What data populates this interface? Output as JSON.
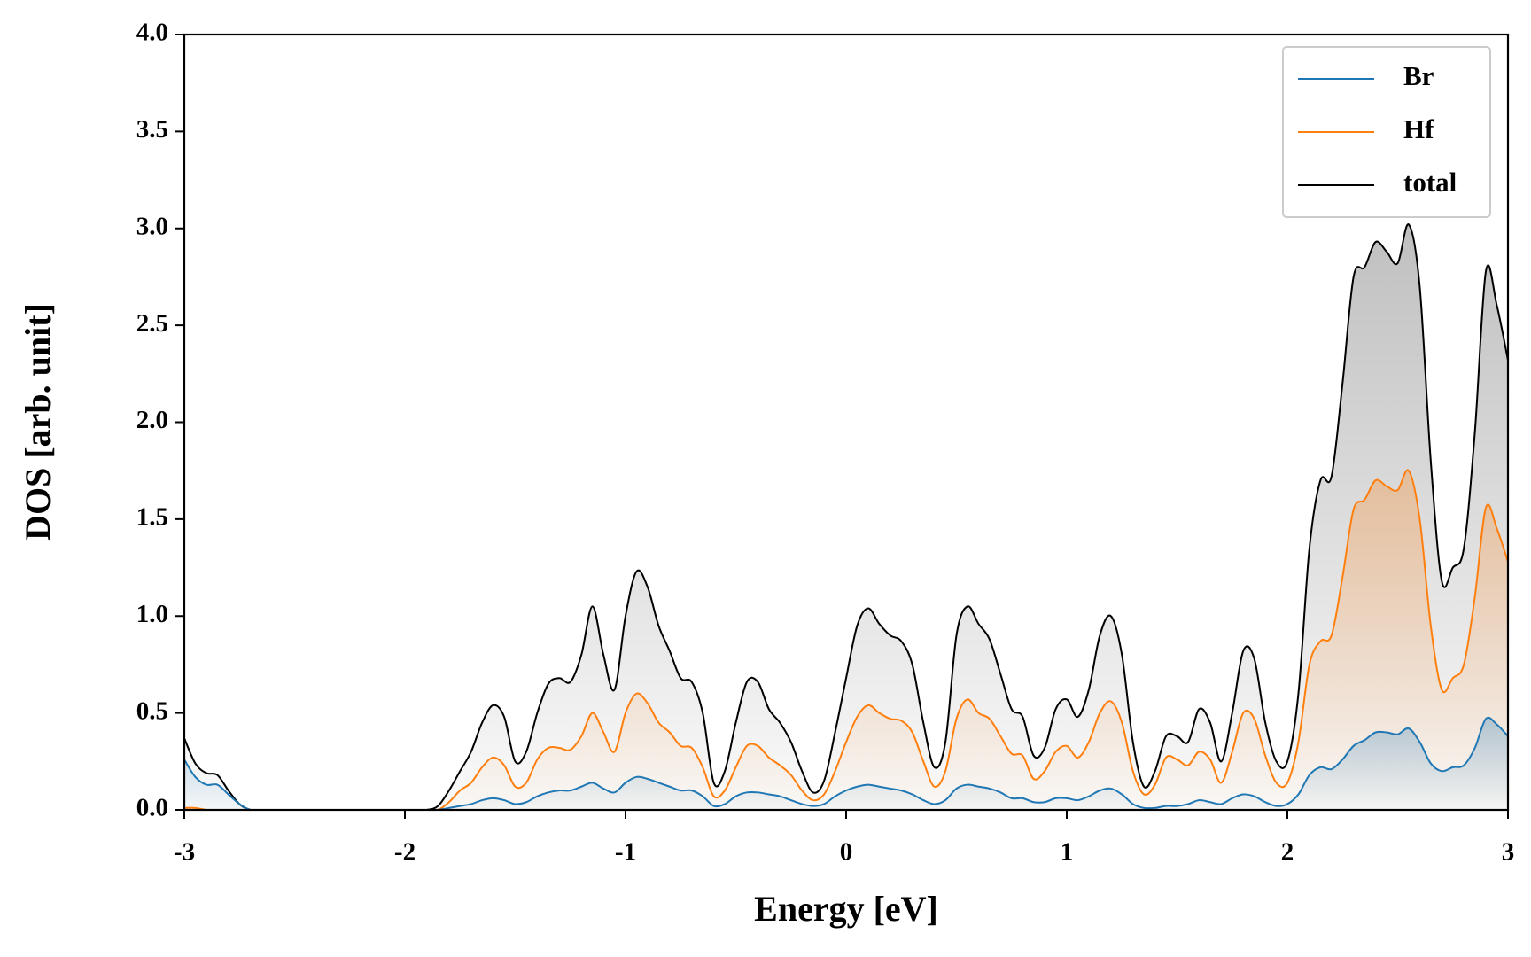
{
  "chart_data": {
    "type": "line",
    "xlabel": "Energy [eV]",
    "ylabel": "DOS [arb. unit]",
    "x": [
      -3,
      -2.95,
      -2.9,
      -2.85,
      -2.8,
      -2.75,
      -2.7,
      -2.65,
      -2.6,
      -2.55,
      -2.5,
      -2.45,
      -2.4,
      -2.35,
      -2.3,
      -2.25,
      -2.2,
      -2.15,
      -2.1,
      -2.05,
      -2,
      -1.95,
      -1.9,
      -1.85,
      -1.8,
      -1.75,
      -1.7,
      -1.65,
      -1.6,
      -1.55,
      -1.5,
      -1.45,
      -1.4,
      -1.35,
      -1.3,
      -1.25,
      -1.2,
      -1.15,
      -1.1,
      -1.05,
      -1,
      -0.95,
      -0.9,
      -0.85,
      -0.8,
      -0.75,
      -0.7,
      -0.65,
      -0.6,
      -0.55,
      -0.5,
      -0.45,
      -0.4,
      -0.35,
      -0.3,
      -0.25,
      -0.2,
      -0.15,
      -0.1,
      -0.05,
      0,
      0.05,
      0.1,
      0.15,
      0.2,
      0.25,
      0.3,
      0.35,
      0.4,
      0.45,
      0.5,
      0.55,
      0.6,
      0.65,
      0.7,
      0.75,
      0.8,
      0.85,
      0.9,
      0.95,
      1,
      1.05,
      1.1,
      1.15,
      1.2,
      1.25,
      1.3,
      1.35,
      1.4,
      1.45,
      1.5,
      1.55,
      1.6,
      1.65,
      1.7,
      1.75,
      1.8,
      1.85,
      1.9,
      1.95,
      2,
      2.05,
      2.1,
      2.15,
      2.2,
      2.25,
      2.3,
      2.35,
      2.4,
      2.45,
      2.5,
      2.55,
      2.6,
      2.65,
      2.7,
      2.75,
      2.8,
      2.85,
      2.9,
      2.95,
      3
    ],
    "series": [
      {
        "name": "Br",
        "color": "#1f77b4",
        "values": [
          0.26,
          0.17,
          0.13,
          0.13,
          0.08,
          0.03,
          0,
          0,
          0,
          0,
          0,
          0,
          0,
          0,
          0,
          0,
          0,
          0,
          0,
          0,
          0,
          0,
          0,
          0,
          0.01,
          0.02,
          0.03,
          0.05,
          0.06,
          0.05,
          0.03,
          0.04,
          0.07,
          0.09,
          0.1,
          0.1,
          0.12,
          0.14,
          0.11,
          0.09,
          0.14,
          0.17,
          0.16,
          0.14,
          0.12,
          0.1,
          0.1,
          0.07,
          0.02,
          0.03,
          0.07,
          0.09,
          0.09,
          0.08,
          0.07,
          0.05,
          0.03,
          0.02,
          0.03,
          0.07,
          0.1,
          0.12,
          0.13,
          0.12,
          0.11,
          0.1,
          0.08,
          0.05,
          0.03,
          0.05,
          0.11,
          0.13,
          0.12,
          0.11,
          0.09,
          0.06,
          0.06,
          0.04,
          0.04,
          0.06,
          0.06,
          0.05,
          0.07,
          0.1,
          0.11,
          0.08,
          0.03,
          0.01,
          0.01,
          0.02,
          0.02,
          0.03,
          0.05,
          0.04,
          0.03,
          0.06,
          0.08,
          0.07,
          0.04,
          0.02,
          0.03,
          0.08,
          0.18,
          0.22,
          0.21,
          0.26,
          0.33,
          0.36,
          0.4,
          0.4,
          0.39,
          0.42,
          0.35,
          0.24,
          0.2,
          0.22,
          0.23,
          0.32,
          0.47,
          0.44,
          0.38
        ]
      },
      {
        "name": "Hf",
        "color": "#ff7f0e",
        "values": [
          0.01,
          0.01,
          0,
          0,
          0,
          0,
          0,
          0,
          0,
          0,
          0,
          0,
          0,
          0,
          0,
          0,
          0,
          0,
          0,
          0,
          0,
          0,
          0,
          0,
          0.04,
          0.1,
          0.14,
          0.22,
          0.27,
          0.23,
          0.12,
          0.14,
          0.26,
          0.32,
          0.32,
          0.31,
          0.38,
          0.5,
          0.4,
          0.3,
          0.5,
          0.6,
          0.55,
          0.45,
          0.4,
          0.33,
          0.32,
          0.22,
          0.07,
          0.1,
          0.22,
          0.33,
          0.33,
          0.27,
          0.23,
          0.18,
          0.1,
          0.05,
          0.08,
          0.2,
          0.35,
          0.48,
          0.54,
          0.5,
          0.47,
          0.46,
          0.4,
          0.25,
          0.12,
          0.2,
          0.47,
          0.57,
          0.5,
          0.47,
          0.38,
          0.29,
          0.28,
          0.16,
          0.2,
          0.3,
          0.33,
          0.27,
          0.35,
          0.5,
          0.56,
          0.45,
          0.2,
          0.08,
          0.13,
          0.27,
          0.26,
          0.23,
          0.3,
          0.26,
          0.14,
          0.3,
          0.5,
          0.47,
          0.28,
          0.14,
          0.14,
          0.35,
          0.75,
          0.87,
          0.9,
          1.2,
          1.55,
          1.6,
          1.7,
          1.67,
          1.65,
          1.75,
          1.5,
          0.95,
          0.62,
          0.68,
          0.75,
          1.1,
          1.56,
          1.45,
          1.28
        ]
      },
      {
        "name": "total",
        "color": "#000000",
        "values": [
          0.37,
          0.24,
          0.19,
          0.18,
          0.1,
          0.03,
          0,
          0,
          0,
          0,
          0,
          0,
          0,
          0,
          0,
          0,
          0,
          0,
          0,
          0,
          0,
          0,
          0,
          0.02,
          0.1,
          0.2,
          0.3,
          0.45,
          0.54,
          0.48,
          0.25,
          0.3,
          0.5,
          0.65,
          0.68,
          0.66,
          0.8,
          1.05,
          0.8,
          0.62,
          1,
          1.23,
          1.15,
          0.95,
          0.82,
          0.68,
          0.66,
          0.5,
          0.14,
          0.2,
          0.45,
          0.66,
          0.66,
          0.52,
          0.45,
          0.35,
          0.2,
          0.09,
          0.15,
          0.4,
          0.68,
          0.95,
          1.04,
          0.96,
          0.9,
          0.87,
          0.75,
          0.45,
          0.22,
          0.35,
          0.9,
          1.05,
          0.96,
          0.88,
          0.7,
          0.52,
          0.48,
          0.28,
          0.32,
          0.52,
          0.57,
          0.48,
          0.62,
          0.9,
          1,
          0.8,
          0.35,
          0.12,
          0.2,
          0.38,
          0.38,
          0.35,
          0.52,
          0.45,
          0.25,
          0.5,
          0.82,
          0.78,
          0.45,
          0.25,
          0.25,
          0.6,
          1.35,
          1.7,
          1.72,
          2.2,
          2.75,
          2.8,
          2.93,
          2.88,
          2.82,
          3.02,
          2.7,
          1.8,
          1.18,
          1.25,
          1.35,
          1.95,
          2.78,
          2.6,
          2.32
        ]
      }
    ],
    "xlim": [
      -3,
      3
    ],
    "xticks": [
      -3,
      -2,
      -1,
      0,
      1,
      2,
      3
    ],
    "ylim": [
      0,
      4
    ],
    "yticks": [
      {
        "value": 0,
        "label": "0.0"
      },
      0.5,
      {
        "value": 1,
        "label": "1.0"
      },
      1.5,
      {
        "value": 2,
        "label": "2.0"
      },
      2.5,
      {
        "value": 3,
        "label": "3.0"
      },
      3.5,
      {
        "value": 4,
        "label": "4.0"
      }
    ],
    "legend": "upper right",
    "fill_under": true
  }
}
